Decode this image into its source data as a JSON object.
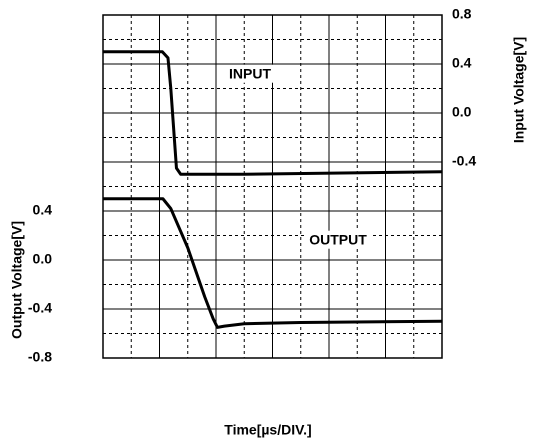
{
  "chart_data": {
    "type": "line",
    "x_label": "Time[µs/DIV.]",
    "y_label": "Output Voltage[V]",
    "y2_label": "Input Voltage[V]",
    "xlim": [
      0,
      12
    ],
    "ylim": [
      -0.8,
      2.0
    ],
    "y2lim": [
      -2.0,
      0.8
    ],
    "yticks": [
      -0.8,
      -0.4,
      {
        "value": 0,
        "label": "0.0"
      },
      0.4
    ],
    "y2ticks": [
      -0.4,
      {
        "value": 0,
        "label": "0.0"
      },
      0.4,
      0.8
    ],
    "xgrid": [
      1,
      2,
      3,
      4,
      5,
      6,
      7,
      8,
      9,
      10,
      11
    ],
    "ygrid": [
      -0.6,
      -0.4,
      -0.2,
      0,
      0.2,
      0.4,
      0.6,
      0.8,
      1.0,
      1.2,
      1.4,
      1.6,
      1.8
    ],
    "grid": true,
    "series": [
      {
        "name": "INPUT",
        "axis": "y2",
        "color": "#000000",
        "x": [
          0,
          2.1,
          2.3,
          2.4,
          2.6,
          2.75,
          5,
          12
        ],
        "values": [
          0.5,
          0.5,
          0.45,
          0.2,
          -0.45,
          -0.5,
          -0.5,
          -0.48
        ]
      },
      {
        "name": "OUTPUT",
        "axis": "y",
        "color": "#000000",
        "x": [
          0,
          2.12,
          2.4,
          3.0,
          3.6,
          3.9,
          4.05,
          4.3,
          5,
          7,
          12
        ],
        "values": [
          0.5,
          0.5,
          0.42,
          0.1,
          -0.3,
          -0.48,
          -0.55,
          -0.54,
          -0.52,
          -0.51,
          -0.5
        ]
      }
    ]
  }
}
